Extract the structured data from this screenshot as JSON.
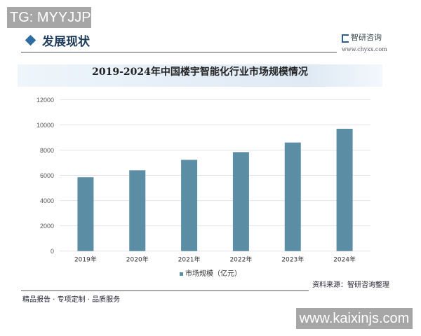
{
  "overlay": {
    "top_left": "TG: MYYJJPP",
    "bottom_right": "www.kaixinjs.com"
  },
  "header": {
    "section_title": "发展现状",
    "brand": "智研咨询",
    "brand_url": "www.chyxx.com"
  },
  "footer": {
    "source": "资料来源：智研咨询整理",
    "slogan": "精品报告 · 专项定制 · 品质服务"
  },
  "colors": {
    "bar": "#5b8ea5",
    "accent": "#2f6ea0"
  },
  "chart_data": {
    "type": "bar",
    "title": "2019-2024年中国楼宇智能化行业市场规模情况",
    "categories": [
      "2019年",
      "2020年",
      "2021年",
      "2022年",
      "2023年",
      "2024年"
    ],
    "series": [
      {
        "name": "市场规模（亿元）",
        "values": [
          5850,
          6400,
          7230,
          7840,
          8600,
          9690
        ]
      }
    ],
    "ylim": [
      0,
      12000
    ],
    "yticks": [
      "0",
      "2000",
      "4000",
      "6000",
      "8000",
      "10000",
      "12000"
    ],
    "grid": true,
    "legend": "bottom"
  }
}
